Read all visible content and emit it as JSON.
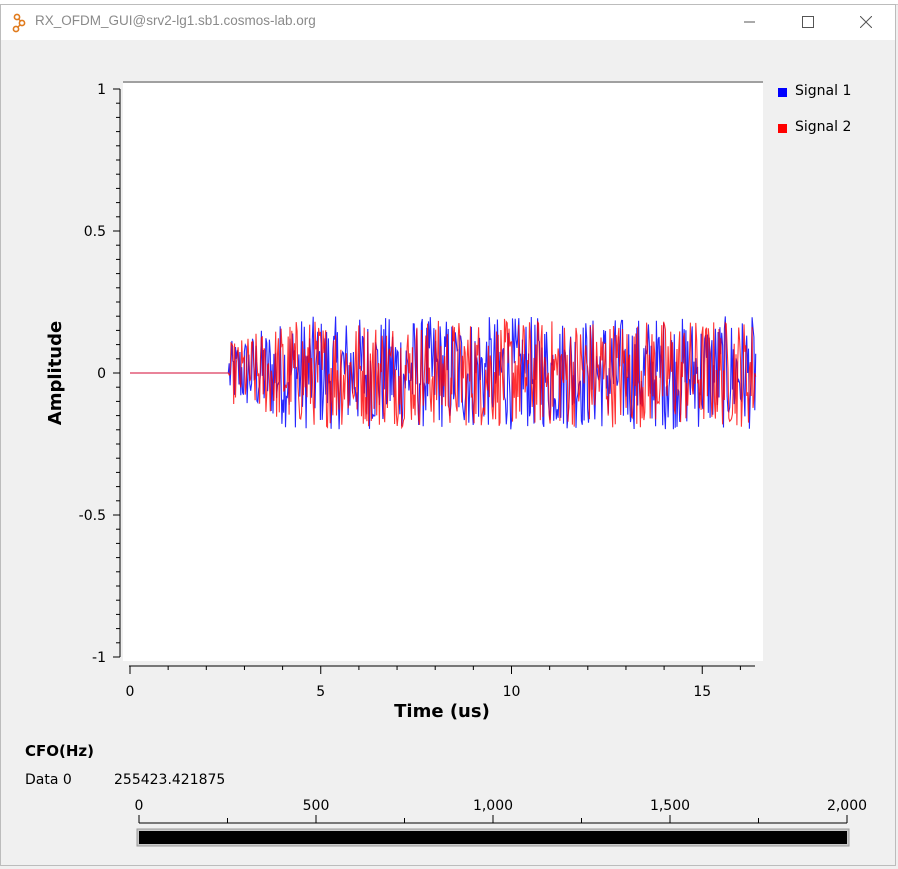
{
  "window": {
    "title": "RX_OFDM_GUI@srv2-lg1.sb1.cosmos-lab.org",
    "icons": [
      "gnuradio-app-icon",
      "minimize-icon",
      "maximize-icon",
      "close-icon"
    ]
  },
  "chart_data": {
    "type": "line",
    "title": "",
    "xlabel": "Time (us)",
    "ylabel": "Amplitude",
    "xlim": [
      0,
      16.4
    ],
    "ylim": [
      -1,
      1
    ],
    "x_ticks": [
      "0",
      "5",
      "10",
      "15"
    ],
    "y_ticks": [
      "1",
      "0.5",
      "0",
      "-0.5",
      "-1"
    ],
    "grid": false,
    "legend_position": "right",
    "series": [
      {
        "name": "Signal 1",
        "color": "#0000ff",
        "description_range": [
          -0.23,
          0.23
        ]
      },
      {
        "name": "Signal 2",
        "color": "#ff0000",
        "description_range": [
          -0.22,
          0.22
        ]
      }
    ],
    "signal_onset_us": 2.6,
    "amplitude_envelope": 0.2
  },
  "legend": {
    "items": [
      {
        "label": "Signal 1",
        "color": "#0000ff"
      },
      {
        "label": "Signal 2",
        "color": "#ff0000"
      }
    ]
  },
  "cfo": {
    "title": "CFO(Hz)",
    "row_label": "Data 0",
    "value": "255423.421875",
    "gauge_min": 0,
    "gauge_max": 2000,
    "gauge_ticks": [
      "0",
      "500",
      "1,000",
      "1,500",
      "2,000"
    ],
    "gauge_fill_fraction": 1.0
  }
}
